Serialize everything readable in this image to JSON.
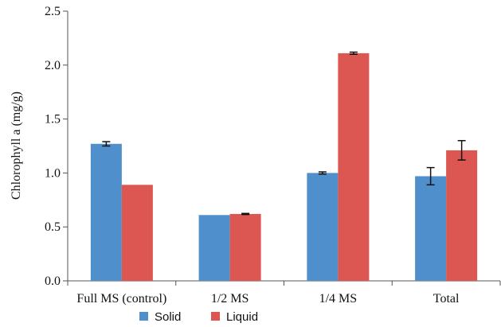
{
  "chart_data": {
    "type": "bar",
    "categories": [
      "Full MS (control)",
      "1/2 MS",
      "1/4 MS",
      "Total"
    ],
    "series": [
      {
        "name": "Solid",
        "values": [
          1.27,
          0.61,
          1.0,
          0.97
        ],
        "errors": [
          0.02,
          0.0,
          0.01,
          0.08
        ],
        "color": "#4f8fcc"
      },
      {
        "name": "Liquid",
        "values": [
          0.89,
          0.62,
          2.11,
          1.21
        ],
        "errors": [
          0.0,
          0.005,
          0.01,
          0.09
        ],
        "color": "#dc5652"
      }
    ],
    "title": "",
    "xlabel": "",
    "ylabel": "Chlorophyll a (mg/g)",
    "ylim": [
      0,
      2.5
    ],
    "yticks": [
      0.0,
      0.5,
      1.0,
      1.5,
      2.0,
      2.5
    ],
    "ytick_labels": [
      "0.0",
      "0.5",
      "1.0",
      "1.5",
      "2.0",
      "2.5"
    ],
    "grid": false,
    "legend_position": "bottom"
  }
}
